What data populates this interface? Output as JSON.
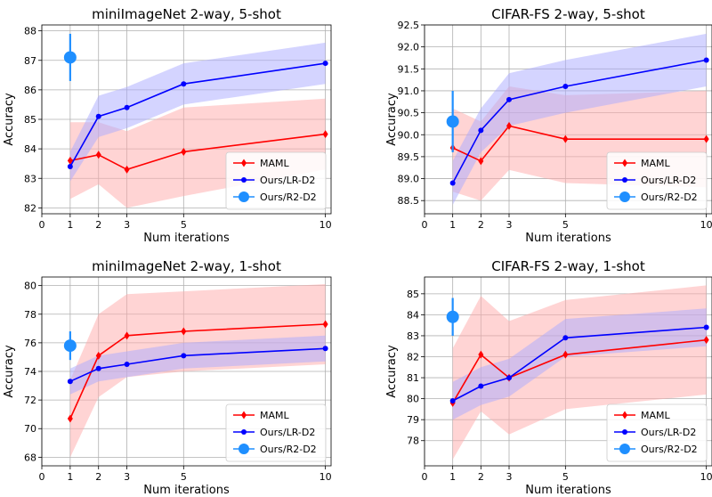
{
  "chart_data": [
    {
      "type": "line",
      "title": "miniImageNet 2-way, 5-shot",
      "xlabel": "Num iterations",
      "ylabel": "Accuracy",
      "xlim": [
        0,
        10.2
      ],
      "ylim": [
        81.8,
        88.2
      ],
      "xticks": [
        0,
        1,
        2,
        3,
        5,
        10
      ],
      "yticks": [
        82,
        83,
        84,
        85,
        86,
        87,
        88
      ],
      "ytick_labels": [
        "82",
        "83",
        "84",
        "85",
        "86",
        "87",
        "88"
      ],
      "grid": true,
      "legend_position": "lower-right",
      "series": [
        {
          "name": "MAML",
          "color": "#ff0000",
          "fill": "#ffaaaa",
          "marker": "diamond",
          "x": [
            1,
            2,
            3,
            5,
            10
          ],
          "y": [
            83.6,
            83.8,
            83.3,
            83.9,
            84.5
          ],
          "lower": [
            82.3,
            82.8,
            82.0,
            82.4,
            83.3
          ],
          "upper": [
            84.9,
            84.9,
            84.6,
            85.4,
            85.7
          ]
        },
        {
          "name": "Ours/LR-D2",
          "color": "#0000ff",
          "fill": "#aaaaff",
          "marker": "circle",
          "x": [
            1,
            2,
            3,
            5,
            10
          ],
          "y": [
            83.4,
            85.1,
            85.4,
            86.2,
            86.9
          ],
          "lower": [
            82.9,
            84.4,
            84.7,
            85.5,
            86.2
          ],
          "upper": [
            83.9,
            85.8,
            86.1,
            86.9,
            87.6
          ]
        },
        {
          "name": "Ours/R2-D2",
          "color": "#1f8fff",
          "marker": "big-circle",
          "x": [
            1
          ],
          "y": [
            87.1
          ],
          "err": [
            0.8
          ]
        }
      ]
    },
    {
      "type": "line",
      "title": "CIFAR-FS 2-way, 5-shot",
      "xlabel": "Num iterations",
      "ylabel": "Accuracy",
      "xlim": [
        0,
        10.2
      ],
      "ylim": [
        88.2,
        92.5
      ],
      "xticks": [
        0,
        1,
        2,
        3,
        5,
        10
      ],
      "yticks": [
        88.5,
        89.0,
        89.5,
        90.0,
        90.5,
        91.0,
        91.5,
        92.0,
        92.5
      ],
      "ytick_labels": [
        "88.5",
        "89.0",
        "89.5",
        "90.0",
        "90.5",
        "91.0",
        "91.5",
        "92.0",
        "92.5"
      ],
      "grid": true,
      "legend_position": "lower-right",
      "series": [
        {
          "name": "MAML",
          "color": "#ff0000",
          "fill": "#ffaaaa",
          "marker": "diamond",
          "x": [
            1,
            2,
            3,
            5,
            10
          ],
          "y": [
            89.7,
            89.4,
            90.2,
            89.9,
            89.9
          ],
          "lower": [
            88.7,
            88.5,
            89.2,
            88.9,
            88.8
          ],
          "upper": [
            90.6,
            90.3,
            91.1,
            90.9,
            91.0
          ]
        },
        {
          "name": "Ours/LR-D2",
          "color": "#0000ff",
          "fill": "#aaaaff",
          "marker": "circle",
          "x": [
            1,
            2,
            3,
            5,
            10
          ],
          "y": [
            88.9,
            90.1,
            90.8,
            91.1,
            91.7
          ],
          "lower": [
            88.4,
            89.6,
            90.2,
            90.5,
            91.1
          ],
          "upper": [
            89.4,
            90.6,
            91.4,
            91.7,
            92.3
          ]
        },
        {
          "name": "Ours/R2-D2",
          "color": "#1f8fff",
          "marker": "big-circle",
          "x": [
            1
          ],
          "y": [
            90.3
          ],
          "err": [
            0.7
          ]
        }
      ]
    },
    {
      "type": "line",
      "title": "miniImageNet 2-way, 1-shot",
      "xlabel": "Num iterations",
      "ylabel": "Accuracy",
      "xlim": [
        0,
        10.2
      ],
      "ylim": [
        67.4,
        80.6
      ],
      "xticks": [
        0,
        1,
        2,
        3,
        5,
        10
      ],
      "yticks": [
        68,
        70,
        72,
        74,
        76,
        78,
        80
      ],
      "ytick_labels": [
        "68",
        "70",
        "72",
        "74",
        "76",
        "78",
        "80"
      ],
      "grid": true,
      "legend_position": "lower-right",
      "series": [
        {
          "name": "MAML",
          "color": "#ff0000",
          "fill": "#ffaaaa",
          "marker": "diamond",
          "x": [
            1,
            2,
            3,
            5,
            10
          ],
          "y": [
            70.7,
            75.1,
            76.5,
            76.8,
            77.3
          ],
          "lower": [
            68.0,
            72.2,
            73.6,
            74.0,
            74.5
          ],
          "upper": [
            73.4,
            78.0,
            79.4,
            79.6,
            80.1
          ]
        },
        {
          "name": "Ours/LR-D2",
          "color": "#0000ff",
          "fill": "#aaaaff",
          "marker": "circle",
          "x": [
            1,
            2,
            3,
            5,
            10
          ],
          "y": [
            73.3,
            74.2,
            74.5,
            75.1,
            75.6
          ],
          "lower": [
            72.4,
            73.3,
            73.6,
            74.2,
            74.7
          ],
          "upper": [
            74.2,
            75.1,
            75.4,
            76.0,
            76.5
          ]
        },
        {
          "name": "Ours/R2-D2",
          "color": "#1f8fff",
          "marker": "big-circle",
          "x": [
            1
          ],
          "y": [
            75.8
          ],
          "err": [
            1.0
          ]
        }
      ]
    },
    {
      "type": "line",
      "title": "CIFAR-FS 2-way, 1-shot",
      "xlabel": "Num iterations",
      "ylabel": "Accuracy",
      "xlim": [
        0,
        10.2
      ],
      "ylim": [
        76.8,
        85.8
      ],
      "xticks": [
        0,
        1,
        2,
        3,
        5,
        10
      ],
      "yticks": [
        78,
        79,
        80,
        81,
        82,
        83,
        84,
        85
      ],
      "ytick_labels": [
        "78",
        "79",
        "80",
        "81",
        "82",
        "83",
        "84",
        "85"
      ],
      "grid": true,
      "legend_position": "lower-right",
      "series": [
        {
          "name": "MAML",
          "color": "#ff0000",
          "fill": "#ffaaaa",
          "marker": "diamond",
          "x": [
            1,
            2,
            3,
            5,
            10
          ],
          "y": [
            79.8,
            82.1,
            81.0,
            82.1,
            82.8
          ],
          "lower": [
            77.1,
            79.4,
            78.3,
            79.5,
            80.2
          ],
          "upper": [
            82.4,
            84.9,
            83.7,
            84.7,
            85.4
          ]
        },
        {
          "name": "Ours/LR-D2",
          "color": "#0000ff",
          "fill": "#aaaaff",
          "marker": "circle",
          "x": [
            1,
            2,
            3,
            5,
            10
          ],
          "y": [
            79.9,
            80.6,
            81.0,
            82.9,
            83.4
          ],
          "lower": [
            79.0,
            79.7,
            80.1,
            82.0,
            82.5
          ],
          "upper": [
            80.8,
            81.5,
            81.9,
            83.8,
            84.3
          ]
        },
        {
          "name": "Ours/R2-D2",
          "color": "#1f8fff",
          "marker": "big-circle",
          "x": [
            1
          ],
          "y": [
            83.9
          ],
          "err": [
            0.9
          ]
        }
      ]
    }
  ]
}
